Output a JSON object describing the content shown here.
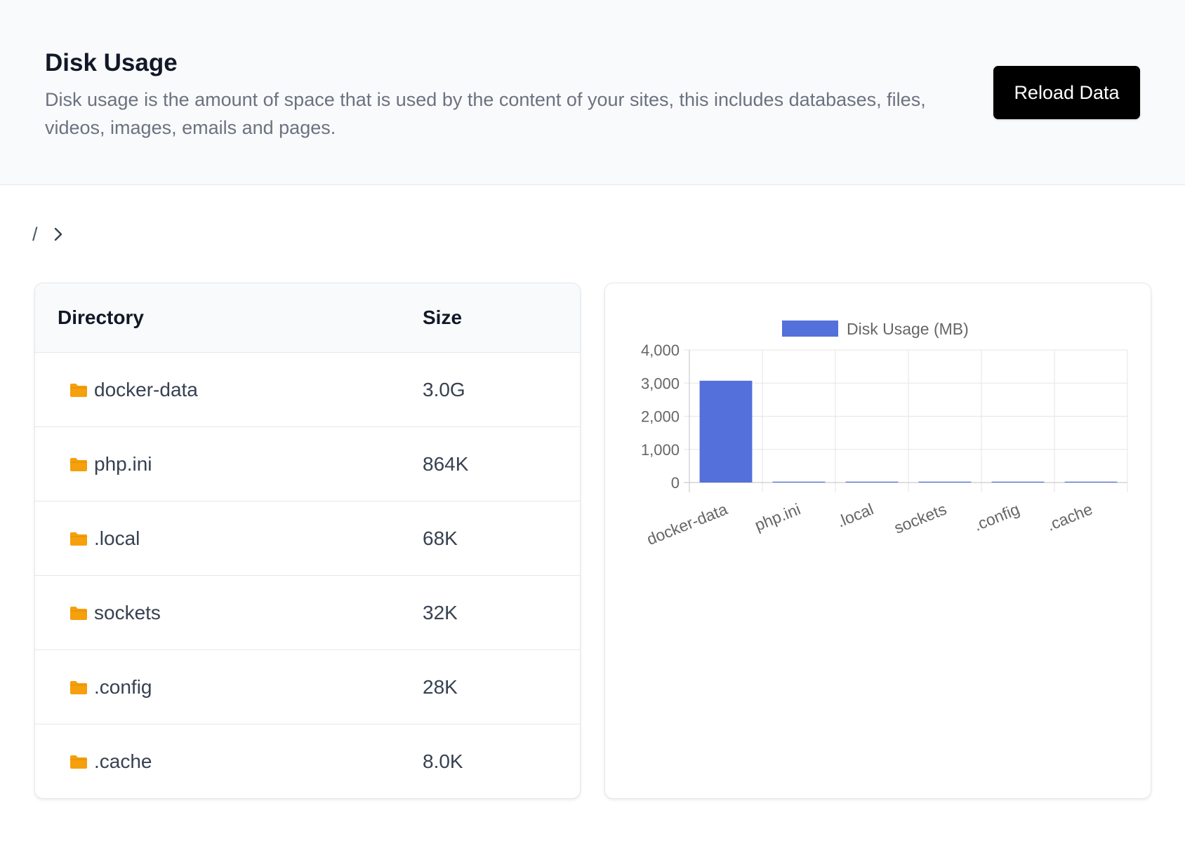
{
  "header": {
    "title": "Disk Usage",
    "description": "Disk usage is the amount of space that is used by the content of your sites, this includes databases, files, videos, images, emails and pages.",
    "reload_label": "Reload Data"
  },
  "breadcrumb": {
    "root": "/"
  },
  "table": {
    "columns": [
      "Directory",
      "Size"
    ],
    "rows": [
      {
        "name": "docker-data",
        "size": "3.0G"
      },
      {
        "name": "php.ini",
        "size": "864K"
      },
      {
        "name": ".local",
        "size": "68K"
      },
      {
        "name": "sockets",
        "size": "32K"
      },
      {
        "name": ".config",
        "size": "28K"
      },
      {
        "name": ".cache",
        "size": "8.0K"
      }
    ]
  },
  "colors": {
    "bar": "#5470db",
    "folder": "#f5a00c",
    "button": "#000000"
  },
  "icons": {
    "folder": "folder-icon",
    "breadcrumb_separator": "chevron-right-icon"
  },
  "chart_data": {
    "type": "bar",
    "categories": [
      "docker-data",
      "php.ini",
      ".local",
      "sockets",
      ".config",
      ".cache"
    ],
    "series": [
      {
        "name": "Disk Usage (MB)",
        "values": [
          3072,
          0.84,
          0.07,
          0.03,
          0.03,
          0.01
        ]
      }
    ],
    "yticks": [
      "0",
      "1,000",
      "2,000",
      "3,000",
      "4,000"
    ],
    "ylim": [
      0,
      4000
    ],
    "grid": true,
    "legend": "top"
  }
}
